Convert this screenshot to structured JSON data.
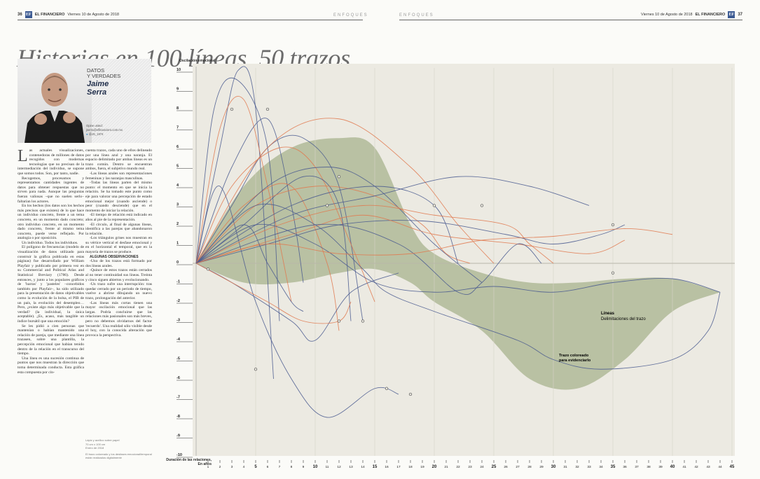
{
  "header_left": {
    "page_number": "36",
    "logo": "EF",
    "brand": "EL FINANCIERO",
    "date": "Viernes 10 de Agosto de 2018"
  },
  "header_right": {
    "page_number": "37",
    "logo": "EF",
    "brand": "EL FINANCIERO",
    "date": "Viernes 10 de Agosto de 2018"
  },
  "section": "ENFOQUES",
  "title": "Historias en 100 líneas, 50 trazos",
  "column": {
    "kicker_line1": "DATOS",
    "kicker_line2": "Y VERDADES",
    "author_line1": "Jaime",
    "author_line2": "Serra",
    "contact_line1": "Opine usted:",
    "contact_line2": "jserra@elfinanciero.com.mx",
    "contact_line3": "@JS_1974"
  },
  "body": {
    "dropcap": "L",
    "p1": "as actuales visualizaciones, contenedoras de millones de datos recogidos con modernas tecnologías que no precisan de la intermediación del individuo, se supone que somos todos. Son, por tanto, nadie.",
    "p2": "Recogemos, procesamos y representamos cantidades ingentes de datos para obtener respuestas que no sirven para nada. Aunque las preguntas fueran valiosas –que no suelen serlo– faltarían los actores.",
    "p3": "En los hechos (los datos son los hechos más precisos que existen) de lo que hace un individuo concreto, frente a un tema concreto, en un momento dado concreto; otro individuo concreto, en un momento dado concreto, frente al mismo tema concreto, puede verse reflejado. Por analogía o por oposición.",
    "p4": "Un individuo. Todos los individuos.",
    "p5": "El polígono de frecuencias (modelo de visualización de datos utilizado para construir la gráfica publicada en estas páginas) fue desarrollado por William Playfair y publicado por primera vez en su Commercial and Political Atlas and Statistical Breviary (1786). Desde entonces, y junto a los populares gráficos de 'barras' y 'pasteles' –concebidos también por Playfair–, ha sido utilizado para la presentación de datos objetivables como la evolución de la bolsa, el PIB de un país, la evolución del desempleo… Pero, ¿existe algo más objetivable que la verdad? (la individual, la única aceptable). ¿Es, acaso, más tangible un índice bursátil que una emoción?",
    "p6": "Se les pidió a cien personas que mantenían o habían mantenido una relación de pareja, que mediante una línea trazasen, sobre una plantilla, la percepción emocional que habían tenido dentro de la relación en el transcurso del tiempo.",
    "p7": "Una línea es una sucesión continua de puntos que nos muestran la dirección que toma determinada conducta. Esta gráfica esta compuesta por cin-",
    "p8": "cuenta trazos, cada uno de ellos delineado por una línea azul y una naranja. El espacio delimitado por ambas líneas es un trazo común. Dentro se encuentran ambos, fuera, el subjetivo mundo real.",
    "p9": "-Las líneas azules son representaciones femeninas y las naranjas masculinas.",
    "p10": "-Todas las líneas parten del mismo punto: el momento en que se inicia la relación. Se ha tomado este punto como eje para valorar una percepción de estado emocional mejor (cuando asciende) o peor (cuando desciende) que en el momento de iniciar la relación.",
    "p11": "-El tiempo de relación está indicado en años al pie de la representación.",
    "p12": "-El círculo, al final de algunas líneas, identifica a las parejas que abandonaron la relación.",
    "p13": "-Los triángulos grises nos muestran en su vértice vertical el desfase emocional y en el horizontal el temporal, que en la mayoría de trazos se produce.",
    "sub": "ALGUNAS OBSERVACIONES",
    "p14": "-Uno de los trazos está formado por dos líneas azules.",
    "p15": "-Quince de estos trazos están cerrados al no tener continuidad sus líneas. Treinta y cinco siguen abiertos y evolucionando.",
    "p16": "-Un trazo sufre una interrupción: tras quedar cerrado por un periodo de tiempo, vuelve a abrirse dibujando un nuevo trazo, prolongación del anterior.",
    "p17": "-Las líneas más cortas tienen una mayor oscilación emocional que las largas. Podría concluirse que las relaciones más pasionales son más breves, pero no debemos olvidarnos del factor 'recuerdo'. Una realidad sólo visible desde el hoy, con la conocida alteración que provoca la perspectiva."
  },
  "credits": {
    "line1": "Lápiz y acrílico sobre papel",
    "line2": "70 cm x 100 cm",
    "line3": "Enero de 2018",
    "line4": "El trazo coloreado y los desfases emocional/temporal están realizados digitalmente"
  },
  "chart_labels": {
    "y_title": "Oscilación emocional",
    "x_title_line1": "Duración de las relaciones,",
    "x_title_line2": "En años",
    "legend_lines_title": "Líneas",
    "legend_lines_desc": "Delimitaciones del trazo",
    "legend_fill_line1": "Trazo coloreado",
    "legend_fill_line2": "para evidenciarlo"
  },
  "chart_data": {
    "type": "line",
    "ylim": [
      -10,
      10
    ],
    "xlim": [
      0,
      45
    ],
    "y_ticks": [
      10,
      9,
      8,
      7,
      6,
      5,
      4,
      3,
      2,
      1,
      0,
      -1,
      -2,
      -3,
      -4,
      -5,
      -6,
      -7,
      -8,
      -9,
      -10
    ],
    "x_ticks": [
      1,
      2,
      3,
      4,
      5,
      6,
      7,
      8,
      9,
      10,
      11,
      12,
      13,
      14,
      15,
      16,
      17,
      18,
      19,
      20,
      21,
      22,
      23,
      24,
      25,
      26,
      27,
      28,
      29,
      30,
      31,
      32,
      33,
      34,
      35,
      36,
      37,
      38,
      39,
      40,
      41,
      42,
      43,
      44,
      45
    ],
    "colors": {
      "female": "#4a5a8f",
      "male": "#e0794f",
      "fill": "#8f9f70",
      "background": "#eceae2"
    },
    "series": [
      {
        "color": "female",
        "x": [
          0,
          2,
          3.5,
          5,
          6.5
        ],
        "y": [
          0,
          6,
          10,
          8,
          -6
        ]
      },
      {
        "color": "female",
        "x": [
          0,
          1.5,
          3.5,
          6,
          7
        ],
        "y": [
          0,
          8,
          9.5,
          6,
          -3
        ]
      },
      {
        "color": "male",
        "x": [
          0,
          2,
          4,
          6,
          8
        ],
        "y": [
          0,
          7,
          8.5,
          4,
          -2
        ]
      },
      {
        "color": "female",
        "x": [
          0,
          3,
          6,
          8,
          9
        ],
        "y": [
          0,
          5,
          7.5,
          3,
          -1
        ]
      },
      {
        "color": "female",
        "x": [
          0,
          3,
          6,
          9,
          12,
          14
        ],
        "y": [
          0,
          3,
          6,
          6.5,
          4,
          -3
        ]
      },
      {
        "color": "male",
        "x": [
          0,
          3,
          7,
          10,
          13,
          15
        ],
        "y": [
          0,
          4,
          6,
          5,
          1,
          -2
        ]
      },
      {
        "color": "female",
        "x": [
          0,
          4,
          9,
          12,
          13
        ],
        "y": [
          0,
          2,
          4.5,
          3,
          -3
        ]
      },
      {
        "color": "male",
        "x": [
          0,
          4,
          8,
          11,
          12
        ],
        "y": [
          0,
          3,
          4,
          0,
          -3.5
        ]
      },
      {
        "color": "female",
        "x": [
          0,
          2,
          5,
          8,
          11,
          15,
          17
        ],
        "y": [
          0,
          4,
          -2,
          -6,
          -8,
          -6.5,
          -6.8
        ]
      },
      {
        "color": "female",
        "x": [
          0,
          6,
          11,
          15,
          20,
          24
        ],
        "y": [
          0,
          4,
          5,
          4,
          1,
          -1
        ]
      },
      {
        "color": "male",
        "x": [
          0,
          5,
          10,
          15,
          19,
          21,
          23
        ],
        "y": [
          0,
          3,
          4,
          3.5,
          2,
          0.5,
          0
        ]
      },
      {
        "color": "male",
        "x": [
          0,
          6,
          12,
          18,
          22,
          25
        ],
        "y": [
          0,
          6,
          7.5,
          5,
          2,
          0
        ]
      },
      {
        "color": "female",
        "x": [
          0,
          8,
          15,
          20,
          22
        ],
        "y": [
          0,
          3,
          4,
          3,
          0
        ]
      },
      {
        "color": "male",
        "x": [
          0,
          7,
          14,
          20,
          26,
          28,
          30
        ],
        "y": [
          0,
          2,
          3,
          2.5,
          2,
          1,
          0
        ]
      },
      {
        "color": "female",
        "x": [
          0,
          6,
          12,
          19,
          26,
          30,
          34,
          36
        ],
        "y": [
          0,
          1,
          2,
          2.2,
          1.5,
          1,
          1.5,
          2
        ]
      },
      {
        "color": "male",
        "x": [
          0,
          8,
          14,
          20,
          27,
          33,
          36
        ],
        "y": [
          0,
          1.5,
          2.5,
          1.5,
          1,
          0.5,
          1.2
        ]
      },
      {
        "color": "female",
        "x": [
          0,
          8,
          15,
          22,
          28,
          33
        ],
        "y": [
          0,
          2.5,
          3.5,
          4.5,
          4,
          3
        ]
      },
      {
        "color": "female",
        "x": [
          0,
          10,
          17,
          22,
          24,
          27,
          29
        ],
        "y": [
          0,
          2,
          1,
          -1.5,
          -1,
          1,
          0
        ]
      },
      {
        "color": "female",
        "x": [
          0,
          5,
          10,
          14,
          16,
          20,
          27,
          30,
          34,
          40,
          43,
          44
        ],
        "y": [
          0,
          3,
          2,
          -0.3,
          -1.5,
          -2.5,
          -4,
          -5,
          -5.5,
          -5,
          -3.5,
          -1.5
        ]
      },
      {
        "color": "female",
        "x": [
          0,
          5,
          10,
          15,
          20,
          25,
          30,
          35,
          40,
          44
        ],
        "y": [
          0,
          2,
          1,
          -1,
          -1.5,
          -1.2,
          -1.5,
          -1,
          -0.8,
          -1.5
        ]
      },
      {
        "color": "male",
        "x": [
          0,
          6,
          12,
          18,
          24,
          30,
          36,
          40
        ],
        "y": [
          0,
          1,
          0.5,
          0.5,
          1.2,
          1.4,
          1.8,
          1.5
        ]
      },
      {
        "color": "female",
        "x": [
          0,
          3,
          8,
          10,
          13,
          17
        ],
        "y": [
          0,
          -1,
          -3,
          -4,
          -1.5,
          -0.5
        ]
      },
      {
        "color": "male",
        "x": [
          0,
          3,
          6,
          9,
          12,
          13
        ],
        "y": [
          0,
          -1,
          -2,
          -3,
          -3,
          -2
        ]
      },
      {
        "color": "female",
        "x": [
          0,
          4,
          6,
          8,
          9
        ],
        "y": [
          0,
          2,
          0,
          -2,
          -2.5
        ]
      }
    ],
    "shapes": [
      {
        "name": "main-trazo",
        "x": [
          0,
          4,
          8,
          12,
          15,
          18,
          20,
          24,
          28,
          32,
          36,
          40,
          44
        ],
        "y_upper": [
          0,
          4,
          6,
          6.5,
          6,
          2,
          0.5,
          -0.5,
          -1,
          -1,
          -0.8,
          -0.8,
          -1.5
        ],
        "y_lower": [
          0,
          -1,
          -1,
          -0.5,
          -0.3,
          -1,
          -2,
          -3.5,
          -6,
          -6.5,
          -5,
          -2.5,
          -1.5
        ]
      }
    ],
    "circle_markers": [
      {
        "x": 3,
        "y": 8
      },
      {
        "x": 6,
        "y": 8
      },
      {
        "x": 12,
        "y": 4.5
      },
      {
        "x": 11,
        "y": 3
      },
      {
        "x": 20,
        "y": 3
      },
      {
        "x": 24,
        "y": 3
      },
      {
        "x": 35,
        "y": 2
      },
      {
        "x": 35,
        "y": -0.5
      },
      {
        "x": 16,
        "y": -6.5
      },
      {
        "x": 18,
        "y": -6.8
      },
      {
        "x": 12,
        "y": -3
      },
      {
        "x": 14,
        "y": -3
      },
      {
        "x": 5,
        "y": -5.5
      },
      {
        "x": 1,
        "y": -0.3
      }
    ]
  }
}
